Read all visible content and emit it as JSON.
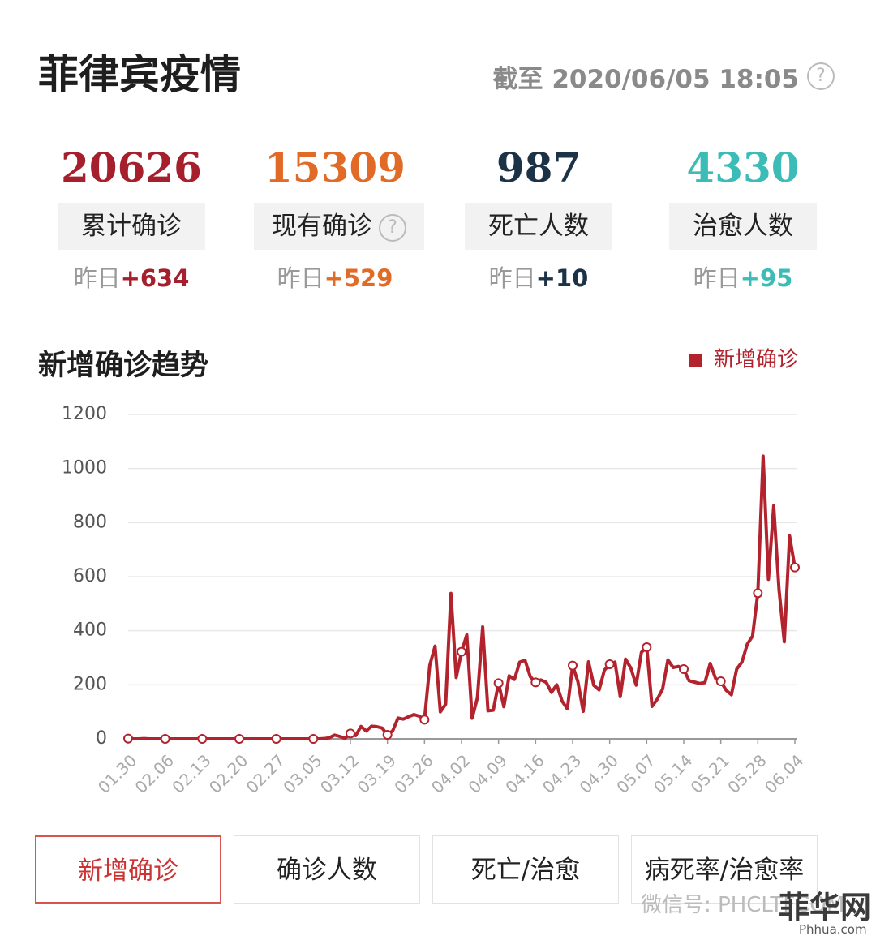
{
  "header": {
    "title": "菲律宾疫情",
    "timestamp": "截至 2020/06/05 18:05"
  },
  "stats": [
    {
      "value": 20626,
      "label": "累计确诊",
      "delta_prefix": "昨日",
      "delta": "+634",
      "color": "#a51f2c"
    },
    {
      "value": 15309,
      "label": "现有确诊",
      "delta_prefix": "昨日",
      "delta": "+529",
      "color": "#e06a26"
    },
    {
      "value": 987,
      "label": "死亡人数",
      "delta_prefix": "昨日",
      "delta": "+10",
      "color": "#1c3247"
    },
    {
      "value": 4330,
      "label": "治愈人数",
      "delta_prefix": "昨日",
      "delta": "+95",
      "color": "#3cbcb6"
    }
  ],
  "chart_data": {
    "type": "line",
    "title": "新增确诊趋势",
    "categories": [
      "01.30",
      null,
      null,
      null,
      null,
      null,
      null,
      "02.06",
      null,
      null,
      null,
      null,
      null,
      null,
      "02.13",
      null,
      null,
      null,
      null,
      null,
      null,
      "02.20",
      null,
      null,
      null,
      null,
      null,
      null,
      "02.27",
      null,
      null,
      null,
      null,
      null,
      null,
      "03.05",
      null,
      null,
      null,
      null,
      null,
      null,
      "03.12",
      null,
      null,
      null,
      null,
      null,
      null,
      "03.19",
      null,
      null,
      null,
      null,
      null,
      null,
      "03.26",
      null,
      null,
      null,
      null,
      null,
      null,
      "04.02",
      null,
      null,
      null,
      null,
      null,
      null,
      "04.09",
      null,
      null,
      null,
      null,
      null,
      null,
      "04.16",
      null,
      null,
      null,
      null,
      null,
      null,
      "04.23",
      null,
      null,
      null,
      null,
      null,
      null,
      "04.30",
      null,
      null,
      null,
      null,
      null,
      null,
      "05.07",
      null,
      null,
      null,
      null,
      null,
      null,
      "05.14",
      null,
      null,
      null,
      null,
      null,
      null,
      "05.21",
      null,
      null,
      null,
      null,
      null,
      null,
      "05.28",
      null,
      null,
      null,
      null,
      null,
      null,
      "06.04"
    ],
    "series": [
      {
        "name": "新增确诊",
        "color": "#b3232e",
        "values": [
          1,
          0,
          0,
          1,
          0,
          0,
          0,
          0,
          0,
          0,
          0,
          0,
          0,
          0,
          0,
          0,
          0,
          0,
          0,
          0,
          0,
          0,
          0,
          0,
          0,
          0,
          0,
          0,
          0,
          0,
          0,
          0,
          0,
          0,
          0,
          0,
          0,
          1,
          4,
          14,
          9,
          2,
          20,
          12,
          46,
          29,
          47,
          45,
          40,
          15,
          30,
          77,
          73,
          82,
          90,
          84,
          71,
          272,
          343,
          100,
          128,
          538,
          227,
          322,
          385,
          76,
          152,
          414,
          104,
          106,
          206,
          119,
          233,
          220,
          284,
          291,
          230,
          209,
          218,
          209,
          172,
          200,
          140,
          111,
          271,
          211,
          102,
          285,
          198,
          181,
          254,
          276,
          284,
          156,
          295,
          262,
          199,
          320,
          339,
          120,
          147,
          184,
          292,
          264,
          268,
          258,
          215,
          210,
          205,
          208,
          279,
          224,
          213,
          180,
          163,
          258,
          284,
          350,
          380,
          539,
          1046,
          590,
          862,
          552,
          359,
          751,
          634
        ]
      }
    ],
    "ylim": [
      0,
      1200
    ],
    "yticks": [
      0,
      200,
      400,
      600,
      800,
      1000,
      1200
    ],
    "grid": true,
    "legend": "top-right"
  },
  "tabs": [
    "新增确诊",
    "确诊人数",
    "死亡/治愈",
    "病死率/治愈率"
  ],
  "active_tab": 0,
  "watermark": {
    "wechat": "微信号: PHCLTFCOM",
    "brand": "菲华网",
    "site": "Phhua.com"
  }
}
